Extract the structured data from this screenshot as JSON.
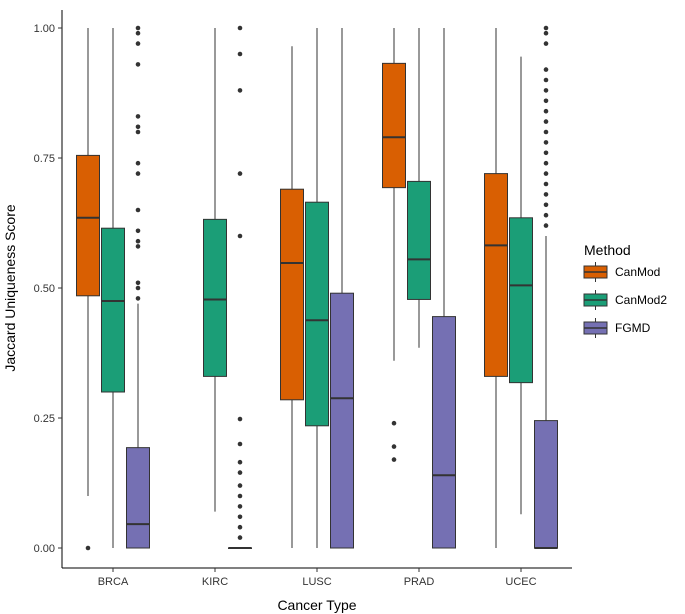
{
  "chart_data": {
    "type": "boxplot",
    "title": "",
    "xlabel": "Cancer Type",
    "ylabel": "Jaccard Uniqueness Score",
    "ylim": [
      0,
      1
    ],
    "yticks": [
      0.0,
      0.25,
      0.5,
      0.75,
      1.0
    ],
    "ytick_labels": [
      "0.00",
      "0.25",
      "0.50",
      "0.75",
      "1.00"
    ],
    "categories": [
      "BRCA",
      "KIRC",
      "LUSC",
      "PRAD",
      "UCEC"
    ],
    "legend": {
      "title": "Method",
      "position": "right",
      "entries": [
        "CanMod",
        "CanMod2",
        "FGMD"
      ]
    },
    "series": [
      {
        "name": "CanMod",
        "color": "#D95F02",
        "boxes": [
          {
            "category": "BRCA",
            "min": 0.1,
            "q1": 0.485,
            "median": 0.635,
            "q3": 0.755,
            "max": 1.0,
            "outliers": [
              0.0
            ]
          },
          null,
          {
            "category": "LUSC",
            "min": 0.0,
            "q1": 0.285,
            "median": 0.548,
            "q3": 0.69,
            "max": 0.965,
            "outliers": []
          },
          {
            "category": "PRAD",
            "min": 0.36,
            "q1": 0.693,
            "median": 0.79,
            "q3": 0.932,
            "max": 1.0,
            "outliers": [
              0.24,
              0.195,
              0.17
            ]
          },
          {
            "category": "UCEC",
            "min": 0.0,
            "q1": 0.33,
            "median": 0.582,
            "q3": 0.72,
            "max": 1.0,
            "outliers": []
          }
        ]
      },
      {
        "name": "CanMod2",
        "color": "#1B9E77",
        "boxes": [
          {
            "category": "BRCA",
            "min": 0.0,
            "q1": 0.3,
            "median": 0.475,
            "q3": 0.615,
            "max": 1.0,
            "outliers": []
          },
          {
            "category": "KIRC",
            "min": 0.07,
            "q1": 0.33,
            "median": 0.478,
            "q3": 0.632,
            "max": 1.0,
            "outliers": []
          },
          {
            "category": "LUSC",
            "min": 0.0,
            "q1": 0.235,
            "median": 0.438,
            "q3": 0.665,
            "max": 1.0,
            "outliers": []
          },
          {
            "category": "PRAD",
            "min": 0.385,
            "q1": 0.478,
            "median": 0.555,
            "q3": 0.705,
            "max": 1.0,
            "outliers": []
          },
          {
            "category": "UCEC",
            "min": 0.065,
            "q1": 0.318,
            "median": 0.505,
            "q3": 0.635,
            "max": 0.945,
            "outliers": []
          }
        ]
      },
      {
        "name": "FGMD",
        "color": "#7570B3",
        "boxes": [
          {
            "category": "BRCA",
            "min": 0.0,
            "q1": 0.0,
            "median": 0.046,
            "q3": 0.193,
            "max": 0.47,
            "outliers": [
              0.48,
              0.5,
              0.51,
              0.58,
              0.59,
              0.61,
              0.65,
              0.72,
              0.74,
              0.8,
              0.81,
              0.83,
              0.93,
              0.97,
              0.99,
              1.0
            ]
          },
          {
            "category": "KIRC",
            "min": 0.0,
            "q1": 0.0,
            "median": 0.0,
            "q3": 0.0,
            "max": 0.0,
            "outliers": [
              0.02,
              0.04,
              0.06,
              0.08,
              0.1,
              0.12,
              0.145,
              0.165,
              0.2,
              0.248,
              0.6,
              0.72,
              0.88,
              0.95,
              1.0
            ]
          },
          {
            "category": "LUSC",
            "min": 0.0,
            "q1": 0.0,
            "median": 0.288,
            "q3": 0.49,
            "max": 1.0,
            "outliers": []
          },
          {
            "category": "PRAD",
            "min": 0.0,
            "q1": 0.0,
            "median": 0.14,
            "q3": 0.445,
            "max": 1.0,
            "outliers": []
          },
          {
            "category": "UCEC",
            "min": 0.0,
            "q1": 0.0,
            "median": 0.0,
            "q3": 0.245,
            "max": 0.6,
            "outliers": [
              0.62,
              0.64,
              0.66,
              0.68,
              0.7,
              0.72,
              0.74,
              0.76,
              0.78,
              0.8,
              0.82,
              0.84,
              0.86,
              0.88,
              0.9,
              0.92,
              0.97,
              0.99,
              1.0
            ]
          }
        ]
      }
    ]
  }
}
